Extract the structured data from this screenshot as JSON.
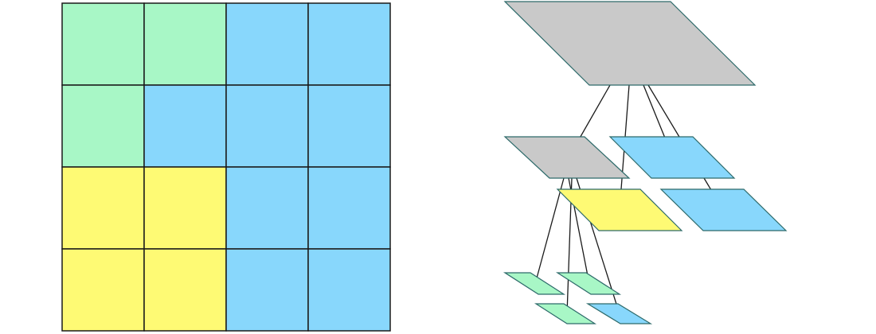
{
  "colors": {
    "green": "#a8f7c6",
    "blue": "#88d7fc",
    "yellow": "#fefa74",
    "gray": "#c9c9c9",
    "grid_stroke": "#1a1a1a",
    "shape_stroke": "#2d6a6a",
    "line": "#1a1a1a"
  },
  "grid": {
    "rows": 4,
    "cols": 4,
    "cells": [
      [
        "green",
        "green",
        "blue",
        "blue"
      ],
      [
        "green",
        "blue",
        "blue",
        "blue"
      ],
      [
        "yellow",
        "yellow",
        "blue",
        "blue"
      ],
      [
        "yellow",
        "yellow",
        "blue",
        "blue"
      ]
    ]
  },
  "tree": {
    "root": {
      "color": "gray",
      "children": [
        {
          "color": "gray",
          "children": [
            {
              "color": "green"
            },
            {
              "color": "green"
            },
            {
              "color": "green"
            },
            {
              "color": "blue"
            }
          ]
        },
        {
          "color": "blue"
        },
        {
          "color": "yellow"
        },
        {
          "color": "blue"
        }
      ]
    }
  }
}
